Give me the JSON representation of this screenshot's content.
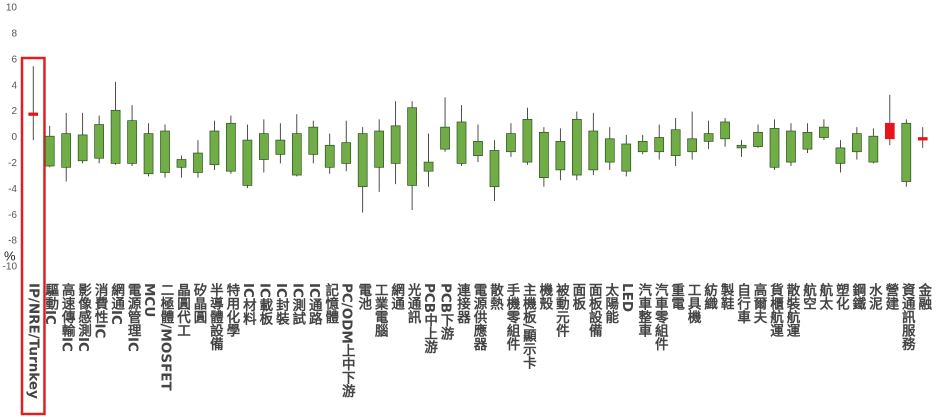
{
  "chart_data": {
    "type": "candlestick",
    "y_label": "%",
    "categories": [
      "IP/NRE/Turnkey",
      "驅動IC",
      "高速傳輸IC",
      "影像感測IC",
      "消費性IC",
      "網通IC",
      "電源管理IC",
      "MCU",
      "二極體/MOSFET",
      "晶圓代工",
      "矽晶圓",
      "半導體設備",
      "特用化學",
      "IC材料",
      "IC載板",
      "IC封裝",
      "IC測試",
      "IC通路",
      "記憶體",
      "PC/ODM上中下游",
      "電池",
      "工業電腦",
      "網通",
      "光通訊",
      "PCB中上游",
      "PCB下游",
      "連接器",
      "電源供應器",
      "散熱",
      "手機零組件",
      "主機板/顯示卡",
      "機殼",
      "被動元件",
      "面板",
      "面板設備",
      "太陽能",
      "LED",
      "汽車整車",
      "汽車零組件",
      "重電",
      "工具機",
      "紡織",
      "製鞋",
      "自行車",
      "高爾夫",
      "貨櫃航運",
      "散裝航運",
      "航空",
      "航太",
      "塑化",
      "鋼鐵",
      "水泥",
      "營建",
      "資通訊服務",
      "金融"
    ],
    "open": [
      1.7,
      0.1,
      0.3,
      0.2,
      1.0,
      2.1,
      1.3,
      0.3,
      0.5,
      -1.7,
      -1.2,
      0.5,
      1.1,
      -0.2,
      0.3,
      -0.2,
      0.3,
      0.8,
      -0.6,
      -0.4,
      0.3,
      0.5,
      0.9,
      2.3,
      -1.9,
      0.8,
      1.2,
      -0.3,
      -1.0,
      0.3,
      1.4,
      0.4,
      -0.3,
      1.4,
      0.5,
      -0.1,
      -0.5,
      -0.3,
      0.0,
      0.6,
      -0.1,
      0.3,
      1.2,
      -0.6,
      0.4,
      0.7,
      0.5,
      0.4,
      0.8,
      -0.8,
      0.3,
      0.1,
      -0.1,
      1.1,
      -0.2
    ],
    "close": [
      1.9,
      -2.2,
      -2.3,
      -1.8,
      -1.6,
      -2.0,
      -2.0,
      -2.8,
      -2.7,
      -2.3,
      -2.7,
      -2.1,
      -2.6,
      -3.7,
      -1.7,
      -1.3,
      -2.9,
      -1.3,
      -2.3,
      -2.0,
      -3.8,
      -2.3,
      -2.0,
      -3.7,
      -2.6,
      -0.9,
      -2.0,
      -1.4,
      -3.8,
      -1.1,
      -1.9,
      -3.1,
      -2.5,
      -2.9,
      -2.5,
      -1.9,
      -2.6,
      -1.1,
      -1.1,
      -1.4,
      -1.1,
      -0.3,
      -0.1,
      -0.8,
      -0.7,
      -2.3,
      -1.9,
      -0.9,
      0.0,
      -2.0,
      -1.1,
      -1.9,
      1.1,
      -3.4,
      0.0
    ],
    "high": [
      5.5,
      0.9,
      1.9,
      1.9,
      1.7,
      4.3,
      2.5,
      1.1,
      1.0,
      -1.4,
      -0.2,
      1.3,
      1.7,
      1.0,
      1.4,
      1.1,
      1.8,
      1.3,
      0.3,
      1.3,
      0.8,
      1.4,
      2.8,
      2.8,
      0.3,
      3.1,
      2.5,
      1.0,
      -0.2,
      1.1,
      2.3,
      0.8,
      0.7,
      2.0,
      1.9,
      0.8,
      0.2,
      0.2,
      1.0,
      1.5,
      2.0,
      1.3,
      1.5,
      -0.2,
      1.0,
      1.4,
      1.1,
      1.1,
      1.4,
      -0.2,
      0.8,
      0.7,
      3.3,
      1.4,
      0.8
    ],
    "low": [
      -0.2,
      -2.3,
      -3.4,
      -2.0,
      -2.0,
      -2.1,
      -2.2,
      -3.0,
      -3.1,
      -3.1,
      -3.1,
      -2.5,
      -2.8,
      -3.9,
      -2.7,
      -2.0,
      -3.0,
      -2.0,
      -2.8,
      -2.6,
      -5.8,
      -4.2,
      -3.6,
      -5.6,
      -3.8,
      -1.1,
      -2.2,
      -1.9,
      -4.9,
      -1.5,
      -2.1,
      -3.8,
      -3.3,
      -3.3,
      -2.9,
      -2.5,
      -3.0,
      -1.3,
      -1.7,
      -2.2,
      -1.7,
      -0.9,
      -0.7,
      -1.5,
      -0.8,
      -2.5,
      -2.2,
      -1.2,
      -0.2,
      -2.7,
      -1.7,
      -2.0,
      -0.6,
      -3.8,
      -0.8
    ],
    "up_color": "#e8141b",
    "down_color": "#70ad47",
    "ylim": [
      -10,
      10
    ],
    "yticks": [
      10,
      8,
      6,
      4,
      2,
      0,
      -2,
      -4,
      -6,
      -8,
      -10
    ],
    "grid": false
  }
}
